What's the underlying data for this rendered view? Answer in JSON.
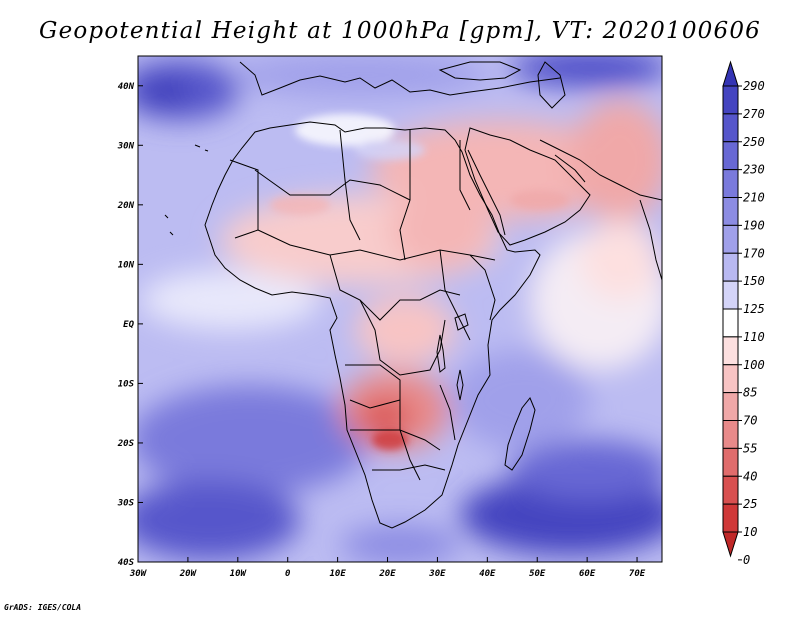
{
  "map": {
    "title": "Geopotential Height at 1000hPa [gpm], VT: 2020100606",
    "variable": "Geopotential Height",
    "level": "1000hPa",
    "units": "gpm",
    "valid_time": "2020100606",
    "extent": {
      "lon_min": -30,
      "lon_max": 75,
      "lat_min": -40,
      "lat_max": 45
    },
    "lon_ticks": [
      {
        "lon": -30,
        "label": "30W"
      },
      {
        "lon": -20,
        "label": "20W"
      },
      {
        "lon": -10,
        "label": "10W"
      },
      {
        "lon": 0,
        "label": "0"
      },
      {
        "lon": 10,
        "label": "10E"
      },
      {
        "lon": 20,
        "label": "20E"
      },
      {
        "lon": 30,
        "label": "30E"
      },
      {
        "lon": 40,
        "label": "40E"
      },
      {
        "lon": 50,
        "label": "50E"
      },
      {
        "lon": 60,
        "label": "60E"
      },
      {
        "lon": 70,
        "label": "70E"
      }
    ],
    "lat_ticks": [
      {
        "lat": 40,
        "label": "40N"
      },
      {
        "lat": 30,
        "label": "30N"
      },
      {
        "lat": 20,
        "label": "20N"
      },
      {
        "lat": 10,
        "label": "10N"
      },
      {
        "lat": 0,
        "label": "EQ"
      },
      {
        "lat": -10,
        "label": "10S"
      },
      {
        "lat": -20,
        "label": "20S"
      },
      {
        "lat": -30,
        "label": "30S"
      },
      {
        "lat": -40,
        "label": "40S"
      }
    ],
    "colorbar": {
      "labels": [
        "290",
        "270",
        "250",
        "230",
        "210",
        "190",
        "170",
        "150",
        "125",
        "110",
        "100",
        "85",
        "70",
        "55",
        "40",
        "25",
        "10",
        "0"
      ],
      "colors": [
        "#3434b4",
        "#4444c0",
        "#5656cb",
        "#6868d4",
        "#7a7adc",
        "#8c8ce3",
        "#a0a0ea",
        "#b8b8f1",
        "#d4d4f8",
        "#ffffff",
        "#fde0e0",
        "#f8c4c4",
        "#f0a8a8",
        "#e88a8a",
        "#e06c6c",
        "#d85050",
        "#cf3838",
        "#c02828"
      ]
    },
    "high_region_color": "#4a4ac6",
    "low_region_color": "#ec8e8e",
    "sea_base_color": "#bcbcf2",
    "land_base_color": "#fbe0e0",
    "footer": "GrADS: IGES/COLA"
  }
}
